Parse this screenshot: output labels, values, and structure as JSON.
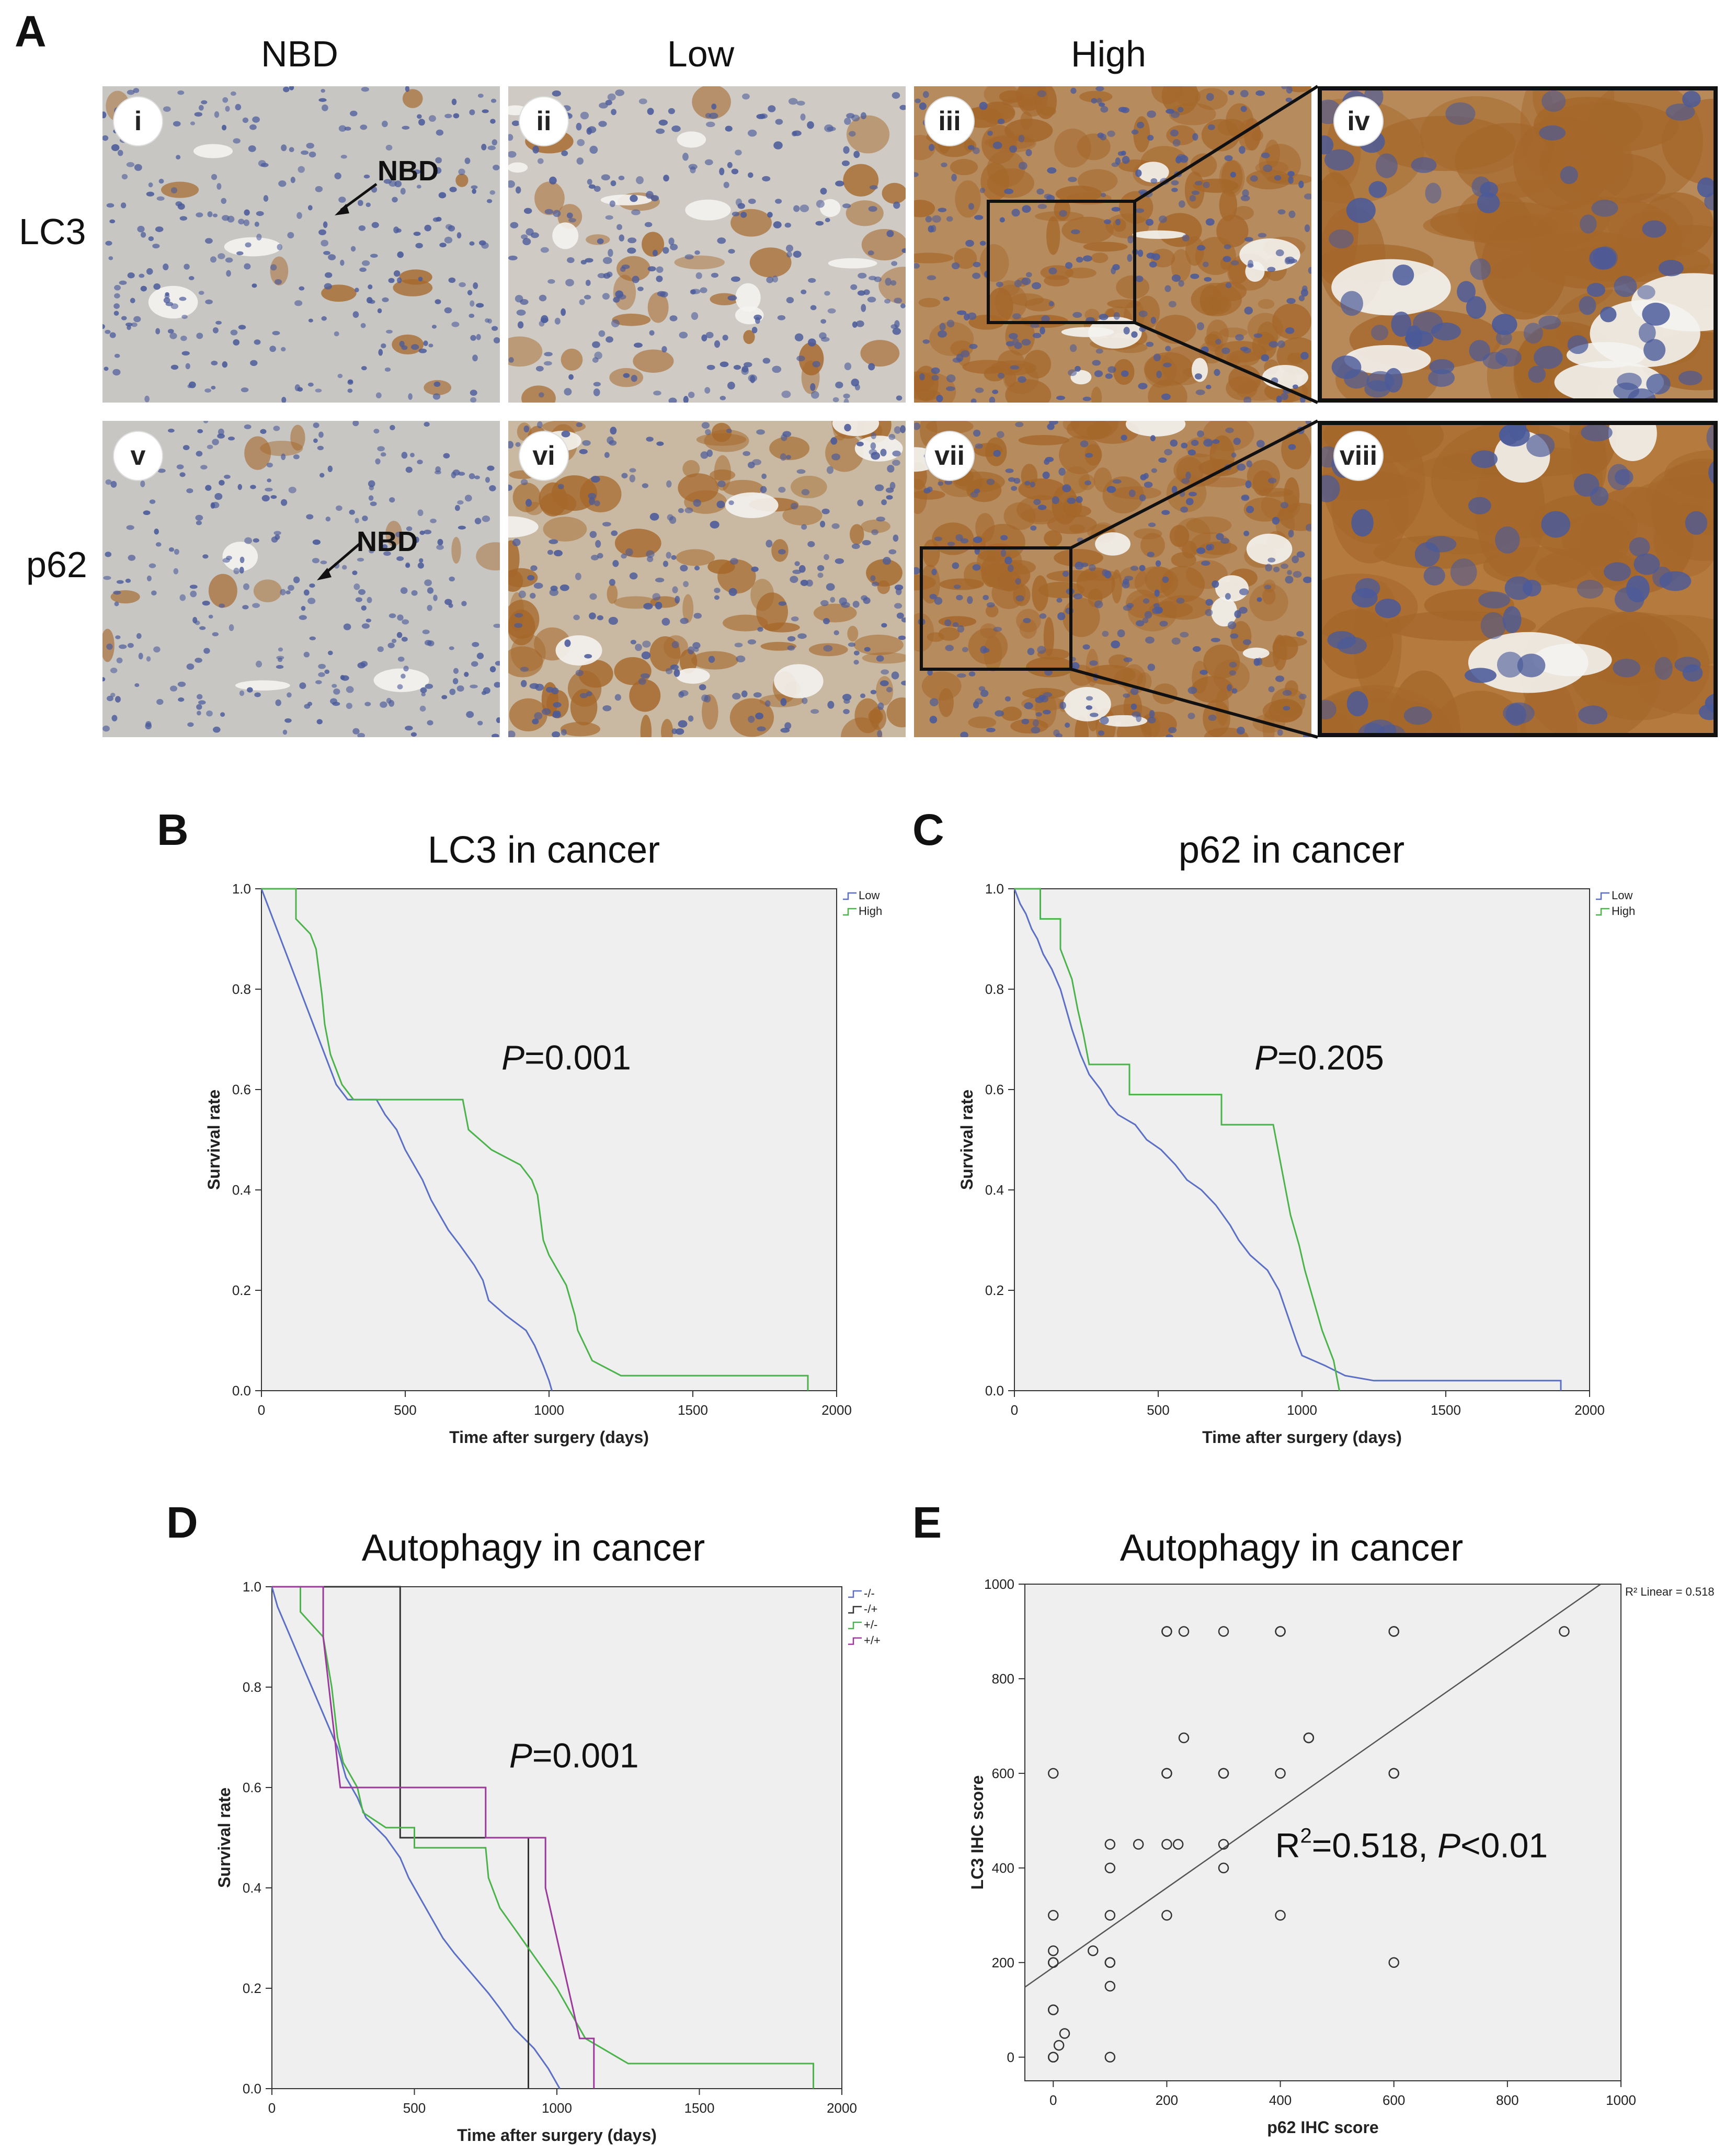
{
  "panel_a": {
    "letter": "A",
    "col_labels": [
      "NBD",
      "Low",
      "High"
    ],
    "row_labels": [
      "LC3",
      "p62"
    ],
    "numerals": [
      "i",
      "ii",
      "iii",
      "iv",
      "v",
      "vi",
      "vii",
      "viii"
    ],
    "nbd_label": "NBD",
    "colors": {
      "tissue_bg": "#c9c7c2",
      "nuclei": "#4a5a9a",
      "brown": "#a5672a"
    }
  },
  "chart_data": [
    {
      "id": "B",
      "type": "line",
      "title": "LC3 in cancer",
      "xlabel": "Time after surgery (days)",
      "ylabel": "Survival rate",
      "xlim": [
        0,
        2000
      ],
      "ylim": [
        0,
        1.0
      ],
      "xticks": [
        "0",
        "500",
        "1000",
        "1500",
        "2000"
      ],
      "yticks": [
        "0.0",
        "0.2",
        "0.4",
        "0.6",
        "0.8",
        "1.0"
      ],
      "annotation": "=0.001",
      "annotation_italic": "P",
      "series": [
        {
          "name": "Low",
          "color": "#5b6fc4",
          "points": [
            [
              0,
              1.0
            ],
            [
              20,
              0.97
            ],
            [
              40,
              0.94
            ],
            [
              60,
              0.91
            ],
            [
              80,
              0.88
            ],
            [
              100,
              0.85
            ],
            [
              120,
              0.82
            ],
            [
              140,
              0.79
            ],
            [
              160,
              0.76
            ],
            [
              180,
              0.73
            ],
            [
              200,
              0.7
            ],
            [
              220,
              0.67
            ],
            [
              240,
              0.64
            ],
            [
              260,
              0.61
            ],
            [
              300,
              0.58
            ],
            [
              400,
              0.58
            ],
            [
              430,
              0.55
            ],
            [
              470,
              0.52
            ],
            [
              500,
              0.48
            ],
            [
              530,
              0.45
            ],
            [
              560,
              0.42
            ],
            [
              590,
              0.38
            ],
            [
              620,
              0.35
            ],
            [
              650,
              0.32
            ],
            [
              690,
              0.29
            ],
            [
              740,
              0.25
            ],
            [
              770,
              0.22
            ],
            [
              790,
              0.18
            ],
            [
              850,
              0.15
            ],
            [
              920,
              0.12
            ],
            [
              950,
              0.09
            ],
            [
              980,
              0.05
            ],
            [
              1000,
              0.02
            ],
            [
              1010,
              0.0
            ]
          ]
        },
        {
          "name": "High",
          "color": "#4cb34c",
          "points": [
            [
              0,
              1.0
            ],
            [
              120,
              1.0
            ],
            [
              120,
              0.94
            ],
            [
              170,
              0.91
            ],
            [
              190,
              0.88
            ],
            [
              210,
              0.79
            ],
            [
              220,
              0.73
            ],
            [
              230,
              0.7
            ],
            [
              240,
              0.67
            ],
            [
              260,
              0.64
            ],
            [
              280,
              0.61
            ],
            [
              320,
              0.58
            ],
            [
              700,
              0.58
            ],
            [
              720,
              0.52
            ],
            [
              800,
              0.48
            ],
            [
              900,
              0.45
            ],
            [
              940,
              0.42
            ],
            [
              960,
              0.39
            ],
            [
              980,
              0.3
            ],
            [
              1000,
              0.27
            ],
            [
              1060,
              0.21
            ],
            [
              1090,
              0.15
            ],
            [
              1100,
              0.12
            ],
            [
              1150,
              0.06
            ],
            [
              1250,
              0.03
            ],
            [
              1900,
              0.03
            ],
            [
              1900,
              0.0
            ]
          ]
        }
      ]
    },
    {
      "id": "C",
      "type": "line",
      "title": "p62 in cancer",
      "xlabel": "Time after surgery (days)",
      "ylabel": "Survival rate",
      "xlim": [
        0,
        2000
      ],
      "ylim": [
        0,
        1.0
      ],
      "xticks": [
        "0",
        "500",
        "1000",
        "1500",
        "2000"
      ],
      "yticks": [
        "0.0",
        "0.2",
        "0.4",
        "0.6",
        "0.8",
        "1.0"
      ],
      "annotation": "=0.205",
      "annotation_italic": "P",
      "series": [
        {
          "name": "Low",
          "color": "#5b6fc4",
          "points": [
            [
              0,
              1.0
            ],
            [
              20,
              0.97
            ],
            [
              40,
              0.95
            ],
            [
              60,
              0.92
            ],
            [
              80,
              0.9
            ],
            [
              100,
              0.87
            ],
            [
              130,
              0.84
            ],
            [
              160,
              0.8
            ],
            [
              180,
              0.76
            ],
            [
              200,
              0.72
            ],
            [
              230,
              0.67
            ],
            [
              260,
              0.63
            ],
            [
              300,
              0.6
            ],
            [
              330,
              0.57
            ],
            [
              360,
              0.55
            ],
            [
              420,
              0.53
            ],
            [
              460,
              0.5
            ],
            [
              510,
              0.48
            ],
            [
              560,
              0.45
            ],
            [
              600,
              0.42
            ],
            [
              650,
              0.4
            ],
            [
              700,
              0.37
            ],
            [
              750,
              0.33
            ],
            [
              780,
              0.3
            ],
            [
              820,
              0.27
            ],
            [
              880,
              0.24
            ],
            [
              920,
              0.2
            ],
            [
              950,
              0.15
            ],
            [
              980,
              0.1
            ],
            [
              1000,
              0.07
            ],
            [
              1080,
              0.05
            ],
            [
              1150,
              0.03
            ],
            [
              1250,
              0.02
            ],
            [
              1900,
              0.02
            ],
            [
              1900,
              0.0
            ]
          ]
        },
        {
          "name": "High",
          "color": "#4cb34c",
          "points": [
            [
              0,
              1.0
            ],
            [
              90,
              1.0
            ],
            [
              90,
              0.94
            ],
            [
              160,
              0.94
            ],
            [
              160,
              0.88
            ],
            [
              200,
              0.82
            ],
            [
              220,
              0.76
            ],
            [
              240,
              0.71
            ],
            [
              260,
              0.65
            ],
            [
              400,
              0.65
            ],
            [
              400,
              0.59
            ],
            [
              720,
              0.59
            ],
            [
              720,
              0.53
            ],
            [
              900,
              0.53
            ],
            [
              920,
              0.47
            ],
            [
              940,
              0.41
            ],
            [
              960,
              0.35
            ],
            [
              990,
              0.29
            ],
            [
              1010,
              0.24
            ],
            [
              1040,
              0.18
            ],
            [
              1070,
              0.12
            ],
            [
              1110,
              0.06
            ],
            [
              1130,
              0.0
            ]
          ]
        }
      ]
    },
    {
      "id": "D",
      "type": "line",
      "title": "Autophagy in cancer",
      "xlabel": "Time after surgery (days)",
      "ylabel": "Survival rate",
      "xlim": [
        0,
        2000
      ],
      "ylim": [
        0,
        1.0
      ],
      "xticks": [
        "0",
        "500",
        "1000",
        "1500",
        "2000"
      ],
      "yticks": [
        "0.0",
        "0.2",
        "0.4",
        "0.6",
        "0.8",
        "1.0"
      ],
      "annotation": "=0.001",
      "annotation_italic": "P",
      "series": [
        {
          "name": "-/-",
          "color": "#5b6fc4",
          "points": [
            [
              0,
              1.0
            ],
            [
              20,
              0.96
            ],
            [
              50,
              0.92
            ],
            [
              80,
              0.88
            ],
            [
              110,
              0.84
            ],
            [
              140,
              0.8
            ],
            [
              170,
              0.76
            ],
            [
              200,
              0.72
            ],
            [
              230,
              0.68
            ],
            [
              260,
              0.62
            ],
            [
              300,
              0.58
            ],
            [
              330,
              0.54
            ],
            [
              400,
              0.5
            ],
            [
              450,
              0.46
            ],
            [
              480,
              0.42
            ],
            [
              520,
              0.38
            ],
            [
              560,
              0.34
            ],
            [
              600,
              0.3
            ],
            [
              640,
              0.27
            ],
            [
              700,
              0.23
            ],
            [
              760,
              0.19
            ],
            [
              800,
              0.16
            ],
            [
              850,
              0.12
            ],
            [
              920,
              0.08
            ],
            [
              970,
              0.04
            ],
            [
              1010,
              0.0
            ]
          ]
        },
        {
          "name": "-/+",
          "color": "#333333",
          "points": [
            [
              0,
              1.0
            ],
            [
              450,
              1.0
            ],
            [
              450,
              0.5
            ],
            [
              900,
              0.5
            ],
            [
              900,
              0.0
            ]
          ]
        },
        {
          "name": "+/-",
          "color": "#4cb34c",
          "points": [
            [
              0,
              1.0
            ],
            [
              100,
              1.0
            ],
            [
              100,
              0.95
            ],
            [
              180,
              0.9
            ],
            [
              210,
              0.8
            ],
            [
              230,
              0.7
            ],
            [
              250,
              0.65
            ],
            [
              300,
              0.6
            ],
            [
              320,
              0.55
            ],
            [
              400,
              0.52
            ],
            [
              500,
              0.52
            ],
            [
              500,
              0.48
            ],
            [
              750,
              0.48
            ],
            [
              760,
              0.42
            ],
            [
              800,
              0.36
            ],
            [
              850,
              0.32
            ],
            [
              900,
              0.28
            ],
            [
              950,
              0.24
            ],
            [
              1000,
              0.2
            ],
            [
              1060,
              0.14
            ],
            [
              1100,
              0.1
            ],
            [
              1250,
              0.05
            ],
            [
              1900,
              0.05
            ],
            [
              1900,
              0.0
            ]
          ]
        },
        {
          "name": "+/+",
          "color": "#9b3a9b",
          "points": [
            [
              0,
              1.0
            ],
            [
              180,
              1.0
            ],
            [
              180,
              0.9
            ],
            [
              200,
              0.8
            ],
            [
              220,
              0.7
            ],
            [
              240,
              0.6
            ],
            [
              750,
              0.6
            ],
            [
              750,
              0.5
            ],
            [
              960,
              0.5
            ],
            [
              960,
              0.4
            ],
            [
              1000,
              0.3
            ],
            [
              1040,
              0.2
            ],
            [
              1080,
              0.1
            ],
            [
              1130,
              0.1
            ],
            [
              1130,
              0.0
            ]
          ]
        }
      ]
    },
    {
      "id": "E",
      "type": "scatter",
      "title": "Autophagy in cancer",
      "xlabel": "p62 IHC score",
      "ylabel": "LC3 IHC score",
      "xlim": [
        -50,
        1000
      ],
      "ylim": [
        -50,
        1000
      ],
      "xticks": [
        "0",
        "200",
        "400",
        "600",
        "800",
        "1000"
      ],
      "yticks": [
        "0",
        "200",
        "400",
        "600",
        "800",
        "1000"
      ],
      "legend": "R² Linear = 0.518",
      "annotation_parts": [
        "R",
        "2",
        "=0.518, ",
        "P",
        "<0.01"
      ],
      "fit_line": {
        "intercept": 190,
        "slope": 0.84
      },
      "points": [
        [
          0,
          0
        ],
        [
          0,
          0
        ],
        [
          10,
          25
        ],
        [
          20,
          50
        ],
        [
          100,
          0
        ],
        [
          0,
          100
        ],
        [
          0,
          100
        ],
        [
          0,
          200
        ],
        [
          0,
          200
        ],
        [
          0,
          225
        ],
        [
          0,
          300
        ],
        [
          0,
          600
        ],
        [
          70,
          225
        ],
        [
          100,
          150
        ],
        [
          100,
          200
        ],
        [
          100,
          200
        ],
        [
          100,
          300
        ],
        [
          100,
          400
        ],
        [
          100,
          450
        ],
        [
          150,
          450
        ],
        [
          200,
          300
        ],
        [
          200,
          450
        ],
        [
          200,
          600
        ],
        [
          200,
          600
        ],
        [
          200,
          900
        ],
        [
          200,
          900
        ],
        [
          220,
          450
        ],
        [
          230,
          675
        ],
        [
          230,
          900
        ],
        [
          300,
          400
        ],
        [
          300,
          450
        ],
        [
          300,
          600
        ],
        [
          300,
          600
        ],
        [
          300,
          900
        ],
        [
          400,
          300
        ],
        [
          400,
          600
        ],
        [
          400,
          900
        ],
        [
          400,
          900
        ],
        [
          450,
          675
        ],
        [
          450,
          675
        ],
        [
          600,
          200
        ],
        [
          600,
          600
        ],
        [
          600,
          600
        ],
        [
          600,
          900
        ],
        [
          600,
          900
        ],
        [
          900,
          900
        ]
      ]
    }
  ]
}
